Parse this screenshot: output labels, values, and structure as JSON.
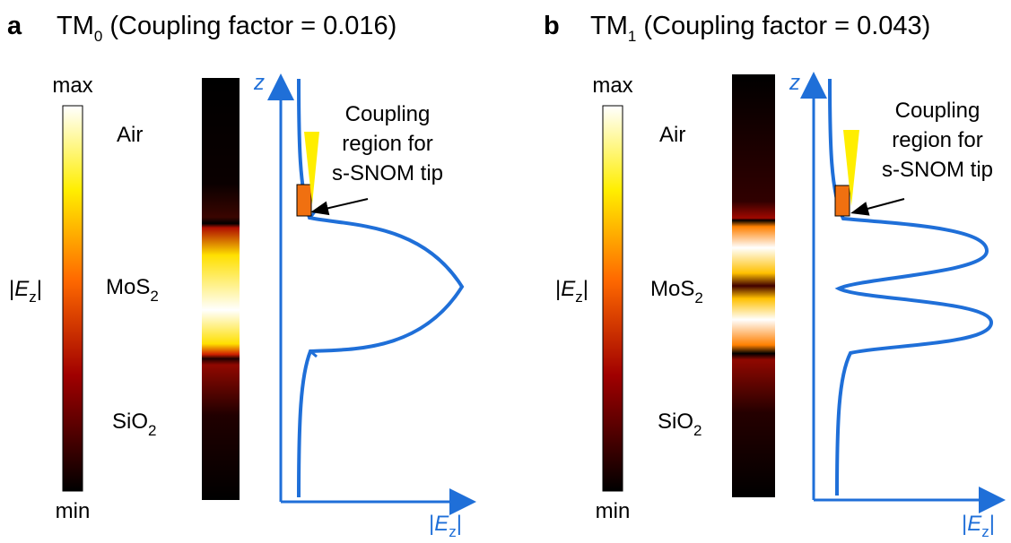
{
  "panels": [
    {
      "letter": "a",
      "title": {
        "main": "TM",
        "sub": "0",
        "rest": "(Coupling factor = 0.016)"
      },
      "colorbar": {
        "max": "max",
        "min": "min",
        "label": {
          "pre": "|",
          "var": "E",
          "sub": "z",
          "post": "|"
        }
      },
      "layers": {
        "air": "Air",
        "mos2": {
          "main": "MoS",
          "sub": "2"
        },
        "sio2": {
          "main": "SiO",
          "sub": "2"
        }
      },
      "axes": {
        "y": "z",
        "x": {
          "pre": "|",
          "var": "E",
          "sub": "z",
          "post": "|"
        }
      },
      "annotation": [
        "Coupling",
        "region for",
        "s-SNOM tip"
      ]
    },
    {
      "letter": "b",
      "title": {
        "main": "TM",
        "sub": "1",
        "rest": "(Coupling factor = 0.043)"
      },
      "colorbar": {
        "max": "max",
        "min": "min",
        "label": {
          "pre": "|",
          "var": "E",
          "sub": "z",
          "post": "|"
        }
      },
      "layers": {
        "air": "Air",
        "mos2": {
          "main": "MoS",
          "sub": "2"
        },
        "sio2": {
          "main": "SiO",
          "sub": "2"
        }
      },
      "axes": {
        "y": "z",
        "x": {
          "pre": "|",
          "var": "E",
          "sub": "z",
          "post": "|"
        }
      },
      "annotation": [
        "Coupling",
        "region for",
        "s-SNOM tip"
      ]
    }
  ]
}
